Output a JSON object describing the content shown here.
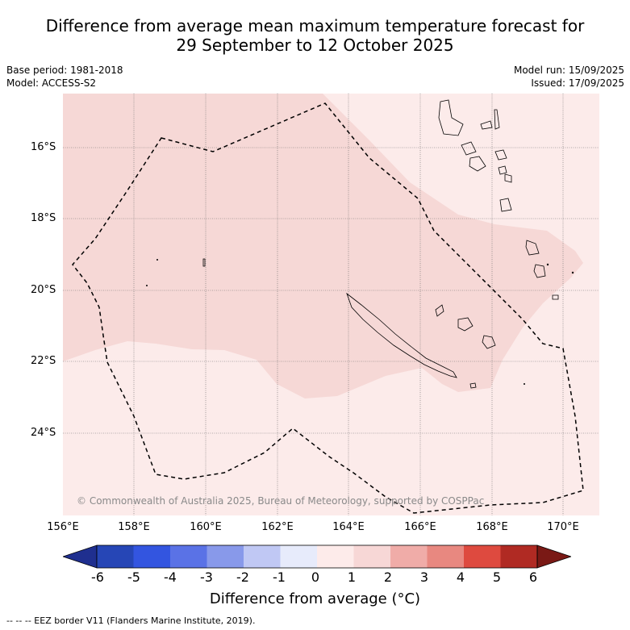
{
  "title_line1": "Difference from average mean maximum temperature forecast for",
  "title_line2": "29 September to 12 October 2025",
  "base_period": "Base period: 1981-2018",
  "model": "Model: ACCESS-S2",
  "model_run": "Model run: 15/09/2025",
  "issued": "Issued: 17/09/2025",
  "copyright": "© Commonwealth of Australia 2025, Bureau of Meteorology, supported by COSPPac",
  "lat_labels": [
    "16°S",
    "18°S",
    "20°S",
    "22°S",
    "24°S"
  ],
  "lon_labels": [
    "156°E",
    "158°E",
    "160°E",
    "162°E",
    "164°E",
    "166°E",
    "168°E",
    "170°E"
  ],
  "colorbar": {
    "ticks": [
      "-6",
      "-5",
      "-4",
      "-3",
      "-2",
      "-1",
      "0",
      "1",
      "2",
      "3",
      "4",
      "5",
      "6"
    ],
    "colors": [
      "#1f2f8f",
      "#2646b6",
      "#3355e0",
      "#5a72e6",
      "#8899ea",
      "#c0c8f4",
      "#e7ebfb",
      "#fdebea",
      "#f7d7d6",
      "#f0aca8",
      "#e88880",
      "#de4a3f",
      "#b02a23",
      "#7a1915"
    ],
    "label": "Difference from average (°C)"
  },
  "map_fill": {
    "light_class": "#fcebea",
    "mid_class": "#f6d8d6"
  },
  "footnote": "-- -- -- EEZ border V11 (Flanders Marine Institute, 2019)."
}
